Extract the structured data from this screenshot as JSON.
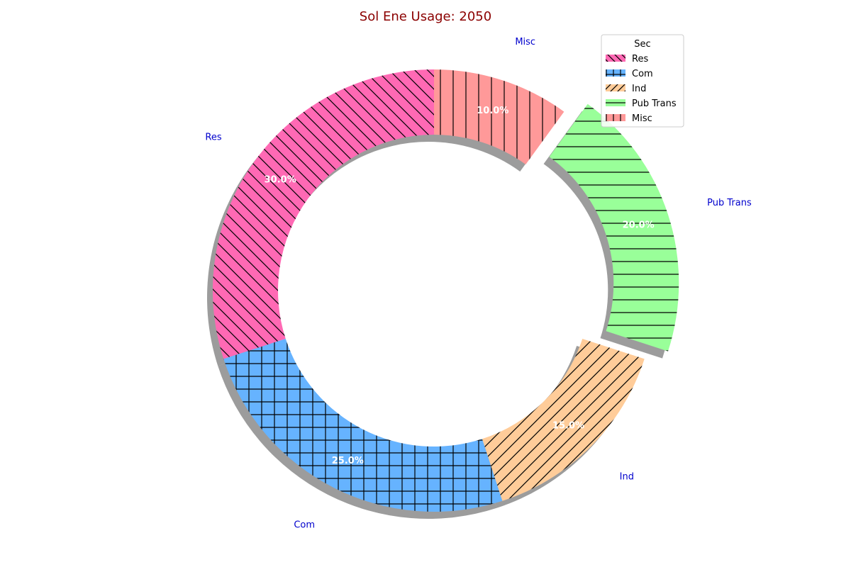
{
  "chart_data": {
    "type": "pie",
    "title": "Sol Ene Usage: 2050",
    "categories": [
      "Res",
      "Com",
      "Ind",
      "Pub Trans",
      "Misc"
    ],
    "values": [
      30,
      25,
      15,
      20,
      10
    ],
    "percent_labels": [
      "30.0%",
      "25.0%",
      "15.0%",
      "20.0%",
      "10.0%"
    ],
    "colors": [
      "#ff69b4",
      "#66b3ff",
      "#ffcc99",
      "#99ff99",
      "#ff9999"
    ],
    "hatches": [
      "backslash",
      "grid",
      "slash",
      "horizontal",
      "vertical"
    ],
    "exploded": [
      false,
      false,
      false,
      true,
      false
    ],
    "shadow": true,
    "donut": true,
    "start_angle_deg": 90,
    "direction": "counterclockwise",
    "legend": {
      "title": "Sec",
      "entries": [
        "Res",
        "Com",
        "Ind",
        "Pub Trans",
        "Misc"
      ],
      "placement": "top-right"
    },
    "title_color": "#8b0000",
    "label_color": "#0000cd"
  }
}
